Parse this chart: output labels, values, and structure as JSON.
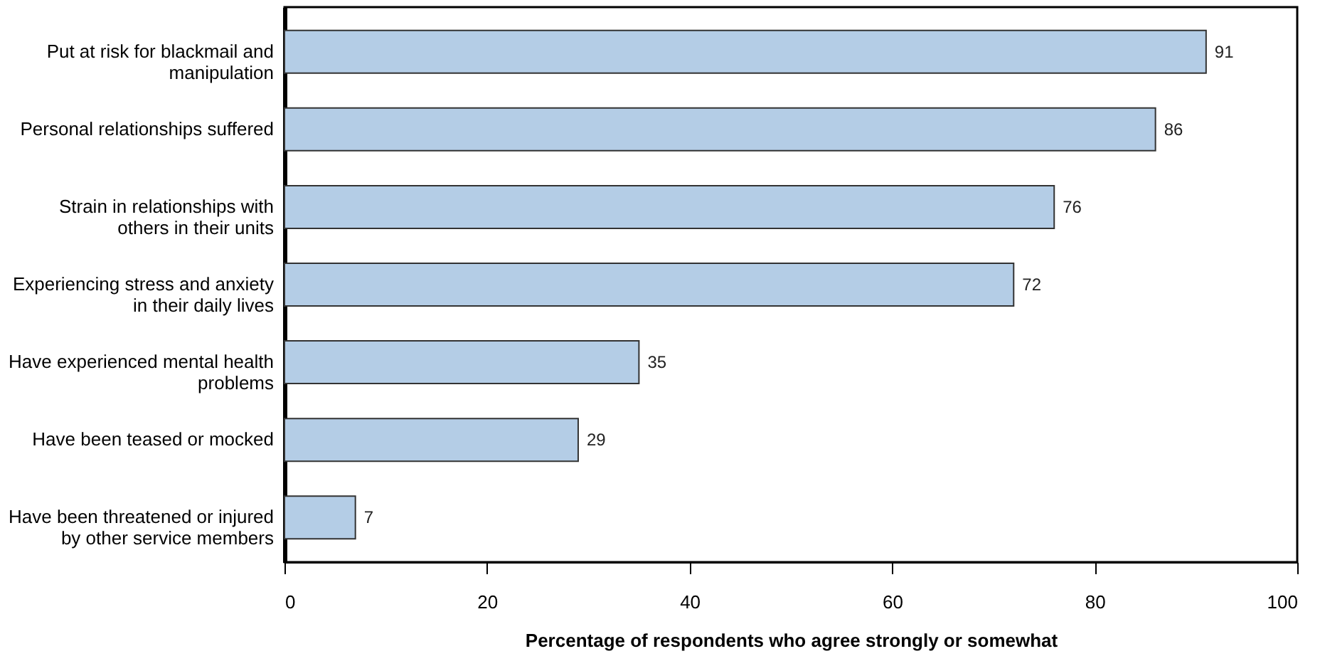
{
  "chart_data": {
    "type": "bar",
    "orientation": "horizontal",
    "xlabel": "Percentage of respondents who agree strongly or somewhat",
    "categories": [
      "Put at risk for blackmail and manipulation",
      "Personal relationships suffered",
      "Strain in relationships with others in their units",
      "Experiencing stress and anxiety in their daily lives",
      "Have experienced mental health problems",
      "Have been teased or mocked",
      "Have been threatened or injured by other service members"
    ],
    "values": [
      91,
      86,
      76,
      72,
      35,
      29,
      7
    ],
    "color": "#b4cde6",
    "data_labels": true,
    "xlim": [
      0,
      100
    ],
    "xticks": [
      0,
      20,
      40,
      60,
      80,
      100
    ],
    "grid": false
  }
}
